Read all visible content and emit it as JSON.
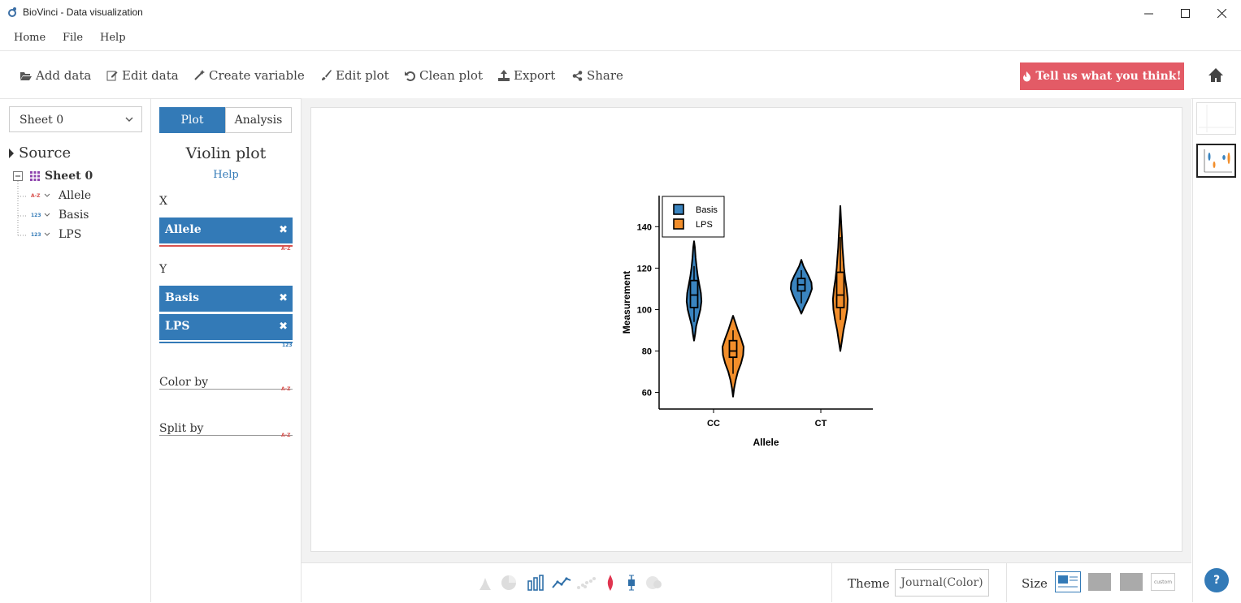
{
  "window": {
    "title": "BioVinci - Data visualization"
  },
  "menu": [
    "Home",
    "File",
    "Help"
  ],
  "toolbar": {
    "add_data": "Add data",
    "edit_data": "Edit data",
    "create_variable": "Create variable",
    "edit_plot": "Edit plot",
    "clean_plot": "Clean plot",
    "export": "Export",
    "share": "Share",
    "feedback": "Tell us what you think!"
  },
  "left": {
    "sheet_select": "Sheet 0",
    "source_label": "Source",
    "sheet_node": "Sheet 0",
    "columns": [
      {
        "name": "Allele",
        "type": "A-Z",
        "type_color": "#d9534f"
      },
      {
        "name": "Basis",
        "type": "123",
        "type_color": "#337ab7"
      },
      {
        "name": "LPS",
        "type": "123",
        "type_color": "#337ab7"
      }
    ]
  },
  "mid": {
    "tab_plot": "Plot",
    "tab_analysis": "Analysis",
    "plot_name": "Violin plot",
    "help": "Help",
    "x_label": "X",
    "x_field": "Allele",
    "x_type": "A-Z",
    "y_label": "Y",
    "y_fields": [
      "Basis",
      "LPS"
    ],
    "y_type": "123",
    "color_by": "Color by",
    "color_type": "A-Z",
    "split_by": "Split by",
    "split_type": "A-Z"
  },
  "bottom": {
    "theme_label": "Theme",
    "theme_value": "Journal(Color)",
    "size_label": "Size",
    "size_custom": "custom",
    "help": "?"
  },
  "colors": {
    "primary": "#337ab7",
    "feedback": "#e35b66",
    "basis": "#3a84bf",
    "lps": "#f28e2b"
  },
  "chart_data": {
    "type": "violin",
    "categories": [
      "CC",
      "CT"
    ],
    "xlabel": "Allele",
    "ylabel": "Measurement",
    "ylim": [
      52,
      155
    ],
    "yticks": [
      60,
      80,
      100,
      120,
      140
    ],
    "legend": "top-left",
    "series": [
      {
        "name": "Basis",
        "color": "#3a84bf",
        "violins": [
          {
            "min": 85,
            "max": 133,
            "q1": 101,
            "median": 107,
            "q3": 114,
            "wlo": 94,
            "whi": 121,
            "profile": [
              [
                85,
                0
              ],
              [
                88,
                0.1
              ],
              [
                92,
                0.2
              ],
              [
                96,
                0.4
              ],
              [
                100,
                0.6
              ],
              [
                104,
                0.7
              ],
              [
                108,
                0.65
              ],
              [
                112,
                0.5
              ],
              [
                116,
                0.35
              ],
              [
                120,
                0.25
              ],
              [
                125,
                0.15
              ],
              [
                130,
                0.08
              ],
              [
                133,
                0
              ]
            ]
          },
          {
            "min": 98,
            "max": 124,
            "q1": 109,
            "median": 112,
            "q3": 115,
            "wlo": 103,
            "whi": 119,
            "profile": [
              [
                98,
                0
              ],
              [
                101,
                0.25
              ],
              [
                104,
                0.55
              ],
              [
                107,
                0.8
              ],
              [
                110,
                1.0
              ],
              [
                113,
                0.95
              ],
              [
                116,
                0.7
              ],
              [
                119,
                0.4
              ],
              [
                121,
                0.2
              ],
              [
                124,
                0
              ]
            ]
          }
        ]
      },
      {
        "name": "LPS",
        "color": "#f28e2b",
        "violins": [
          {
            "min": 58,
            "max": 97,
            "q1": 77,
            "median": 80,
            "q3": 85,
            "wlo": 69,
            "whi": 90,
            "profile": [
              [
                58,
                0
              ],
              [
                62,
                0.1
              ],
              [
                66,
                0.25
              ],
              [
                70,
                0.45
              ],
              [
                74,
                0.75
              ],
              [
                78,
                0.95
              ],
              [
                82,
                1.0
              ],
              [
                86,
                0.75
              ],
              [
                90,
                0.45
              ],
              [
                94,
                0.2
              ],
              [
                97,
                0
              ]
            ]
          },
          {
            "min": 80,
            "max": 150,
            "q1": 101,
            "median": 107,
            "q3": 118,
            "wlo": 95,
            "whi": 135,
            "profile": [
              [
                80,
                0
              ],
              [
                85,
                0.15
              ],
              [
                90,
                0.3
              ],
              [
                95,
                0.5
              ],
              [
                100,
                0.65
              ],
              [
                105,
                0.7
              ],
              [
                110,
                0.6
              ],
              [
                115,
                0.45
              ],
              [
                120,
                0.35
              ],
              [
                125,
                0.28
              ],
              [
                130,
                0.2
              ],
              [
                135,
                0.15
              ],
              [
                140,
                0.1
              ],
              [
                145,
                0.05
              ],
              [
                150,
                0
              ]
            ]
          }
        ]
      }
    ]
  }
}
